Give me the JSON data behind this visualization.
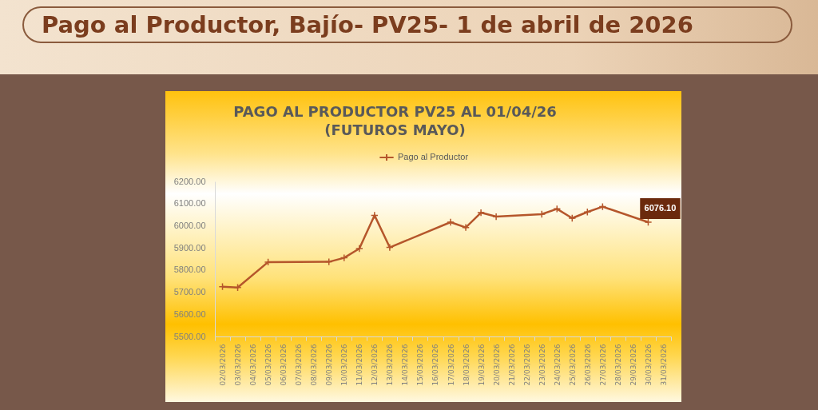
{
  "chart_data": {
    "type": "line",
    "title": "Pago al Productor, Bajío- PV25- 1 de abril de 2026",
    "subtitle": "PAGO AL PRODUCTOR PV25 AL 01/04/26\n(FUTUROS MAYO)",
    "categories": [
      "02/03/2026",
      "03/03/2026",
      "04/03/2026",
      "05/03/2026",
      "06/03/2026",
      "07/03/2026",
      "08/03/2026",
      "09/03/2026",
      "10/03/2026",
      "11/03/2026",
      "12/03/2026",
      "13/03/2026",
      "14/03/2026",
      "15/03/2026",
      "16/03/2026",
      "17/03/2026",
      "18/03/2026",
      "19/03/2026",
      "20/03/2026",
      "21/03/2026",
      "22/03/2026",
      "23/03/2026",
      "24/03/2026",
      "25/03/2026",
      "26/03/2026",
      "27/03/2026",
      "28/03/2026",
      "29/03/2026",
      "30/03/2026",
      "31/03/2026"
    ],
    "series": [
      {
        "name": "Pago al Productor",
        "color": "#b5562b",
        "values": [
          5725,
          5721,
          null,
          5836,
          null,
          null,
          null,
          5837,
          5855,
          5897,
          6047,
          5902,
          null,
          null,
          null,
          6016,
          5992,
          6059,
          6041,
          null,
          null,
          6052,
          6076,
          6034,
          6062,
          6086,
          null,
          null,
          6016,
          null
        ]
      }
    ],
    "ylim": [
      5500,
      6200
    ],
    "yticks": [
      {
        "value": 5500,
        "label": "5500.00"
      },
      {
        "value": 5600,
        "label": "5600.00"
      },
      {
        "value": 5700,
        "label": "5700.00"
      },
      {
        "value": 5800,
        "label": "5800.00"
      },
      {
        "value": 5900,
        "label": "5900.00"
      },
      {
        "value": 6000,
        "label": "6000.00"
      },
      {
        "value": 6100,
        "label": "6100.00"
      },
      {
        "value": 6200,
        "label": "6200.00"
      }
    ],
    "annotations": [
      "6076.10"
    ],
    "grid": false,
    "legend": "top",
    "marker": "cross",
    "line_style": "solid"
  }
}
